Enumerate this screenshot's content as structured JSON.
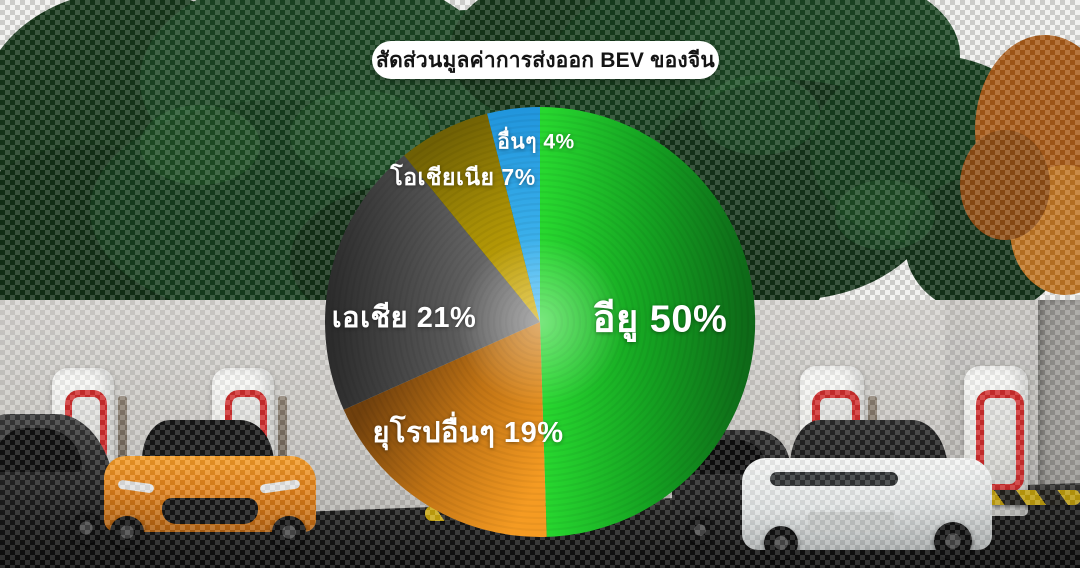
{
  "title": {
    "text": "สัดส่วนมูลค่าการส่งออก BEV ของจีน"
  },
  "chart_data": {
    "type": "pie",
    "title": "สัดส่วนมูลค่าการส่งออก BEV ของจีน",
    "unit": "%",
    "start_angle_deg": 0,
    "direction": "clockwise",
    "legend_position": "labels-on-slices",
    "slices": [
      {
        "label": "อียู",
        "value": 50,
        "display": "อียู 50%",
        "color_inner": "#27d72f",
        "color_mid": "#14a021",
        "color_outer": "#0d6317"
      },
      {
        "label": "ยุโรปอื่นๆ",
        "value": 19,
        "display": "ยุโรปอื่นๆ 19%",
        "color_inner": "#f59b22",
        "color_mid": "#c17415",
        "color_outer": "#70400d"
      },
      {
        "label": "เอเชีย",
        "value": 21,
        "display": "เอเชีย 21%",
        "color_inner": "#7d7d7d",
        "color_mid": "#545454",
        "color_outer": "#2c2c2c"
      },
      {
        "label": "โอเชียเนีย",
        "value": 7,
        "display": "โอเชียเนีย 7%",
        "color_inner": "#cfac08",
        "color_mid": "#a58d06",
        "color_outer": "#6f6005"
      },
      {
        "label": "อื่นๆ",
        "value": 4,
        "display": "อื่นๆ 4%",
        "color_inner": "#4fc1f6",
        "color_mid": "#35abe8",
        "color_outer": "#2196dd"
      }
    ]
  }
}
